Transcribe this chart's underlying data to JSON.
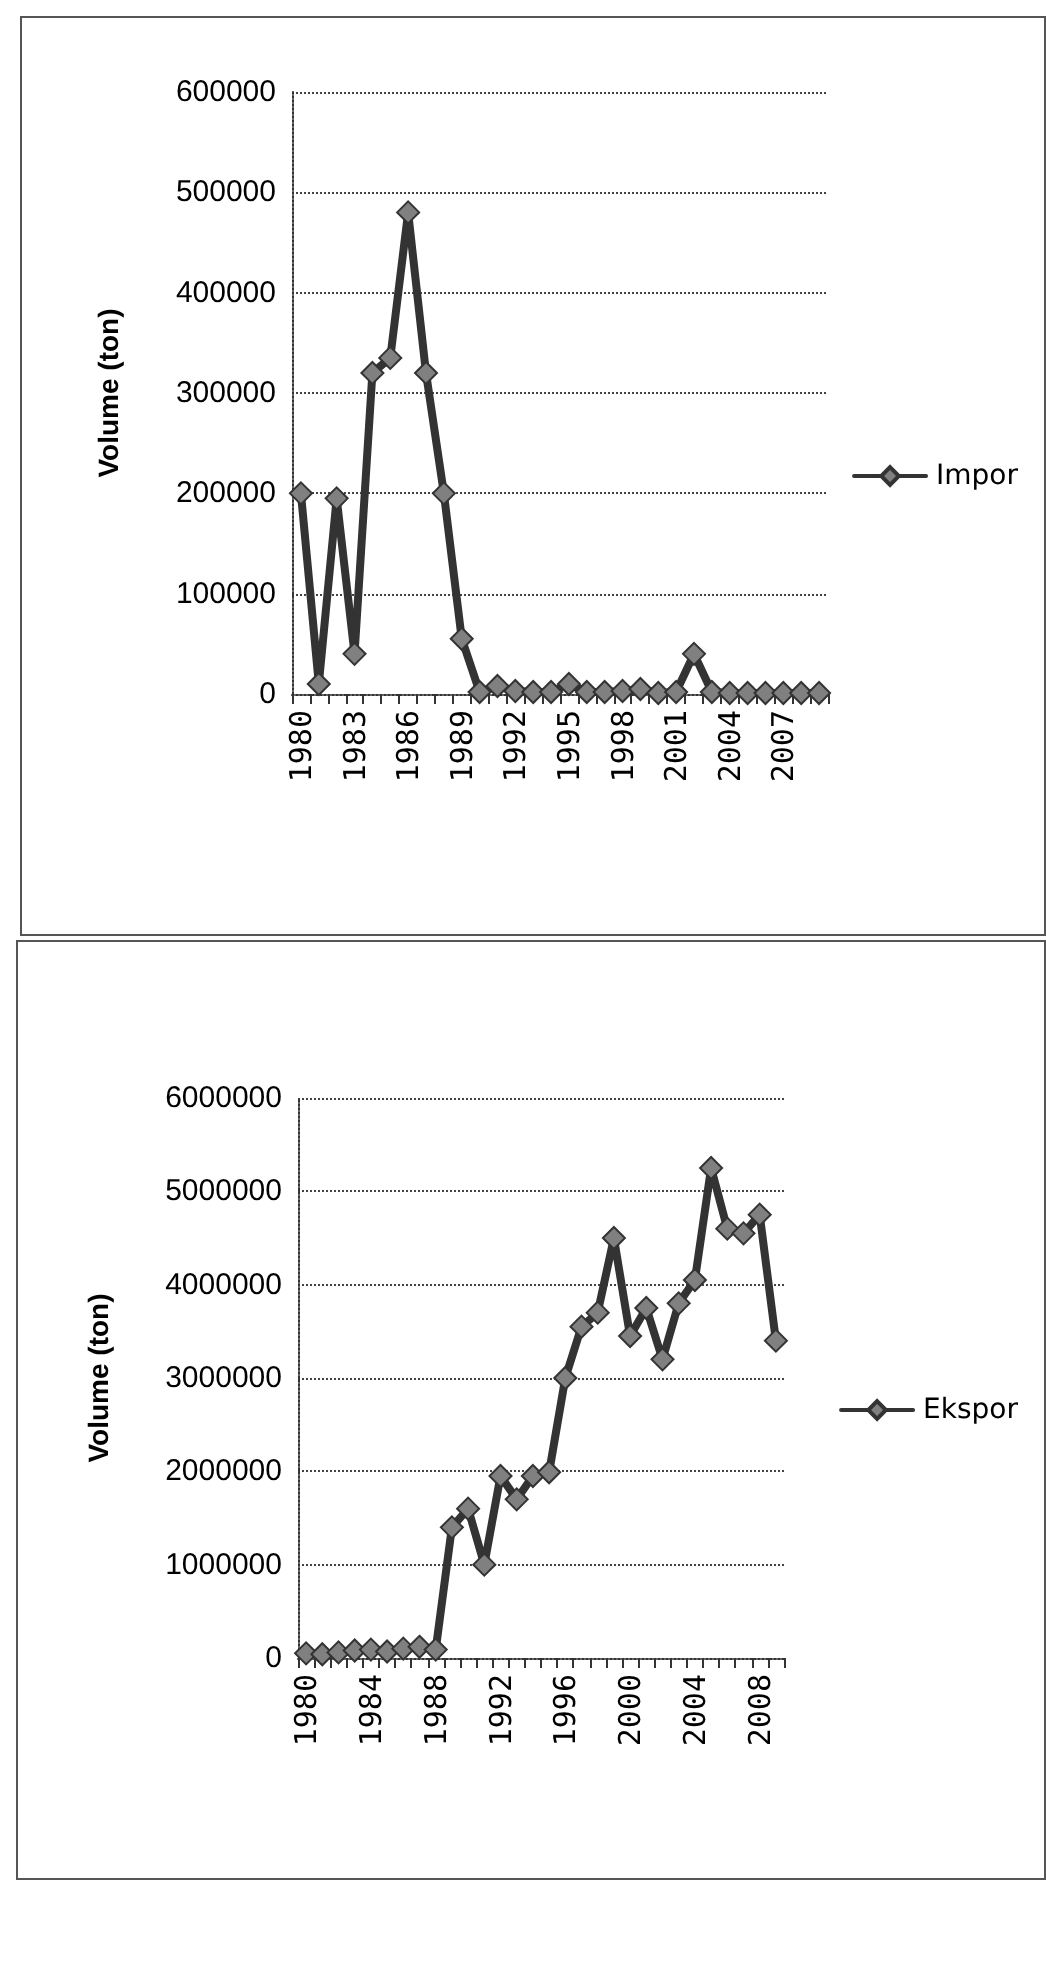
{
  "chart_data": [
    {
      "type": "line",
      "ylabel": "Volume (ton)",
      "categories": [
        "1980",
        null,
        null,
        "1983",
        null,
        null,
        "1986",
        null,
        null,
        "1989",
        null,
        null,
        "1992",
        null,
        null,
        "1995",
        null,
        null,
        "1998",
        null,
        null,
        "2001",
        null,
        null,
        "2004",
        null,
        null,
        "2007",
        null,
        null
      ],
      "series": [
        {
          "name": "Impor",
          "color": "#333333",
          "values": [
            200000,
            10000,
            195000,
            40000,
            320000,
            335000,
            480000,
            320000,
            200000,
            55000,
            2000,
            8000,
            3000,
            2000,
            2000,
            10000,
            2000,
            2000,
            3000,
            5000,
            1000,
            2000,
            40000,
            2000,
            1000,
            1000,
            1000,
            1000,
            1000,
            1000
          ]
        }
      ],
      "ylim": [
        0,
        600000
      ],
      "yticks": [
        0,
        100000,
        200000,
        300000,
        400000,
        500000,
        600000
      ],
      "grid": "y",
      "legend": "right",
      "marker": "diamond",
      "line_style": "solid"
    },
    {
      "type": "line",
      "ylabel": "Volume (ton)",
      "categories": [
        "1980",
        null,
        null,
        null,
        "1984",
        null,
        null,
        null,
        "1988",
        null,
        null,
        null,
        "1992",
        null,
        null,
        null,
        "1996",
        null,
        null,
        null,
        "2000",
        null,
        null,
        null,
        "2004",
        null,
        null,
        null,
        "2008",
        null
      ],
      "series": [
        {
          "name": "Ekspor",
          "color": "#333333",
          "values": [
            50000,
            40000,
            60000,
            80000,
            90000,
            70000,
            100000,
            120000,
            90000,
            1400000,
            1600000,
            1000000,
            1950000,
            1700000,
            1950000,
            1990000,
            3000000,
            3550000,
            3700000,
            4500000,
            3450000,
            3750000,
            3200000,
            3800000,
            4050000,
            5250000,
            4600000,
            4550000,
            4750000,
            3400000
          ]
        }
      ],
      "ylim": [
        0,
        6000000
      ],
      "yticks": [
        0,
        1000000,
        2000000,
        3000000,
        4000000,
        5000000,
        6000000
      ],
      "grid": "y",
      "legend": "right",
      "marker": "diamond",
      "line_style": "solid"
    }
  ]
}
